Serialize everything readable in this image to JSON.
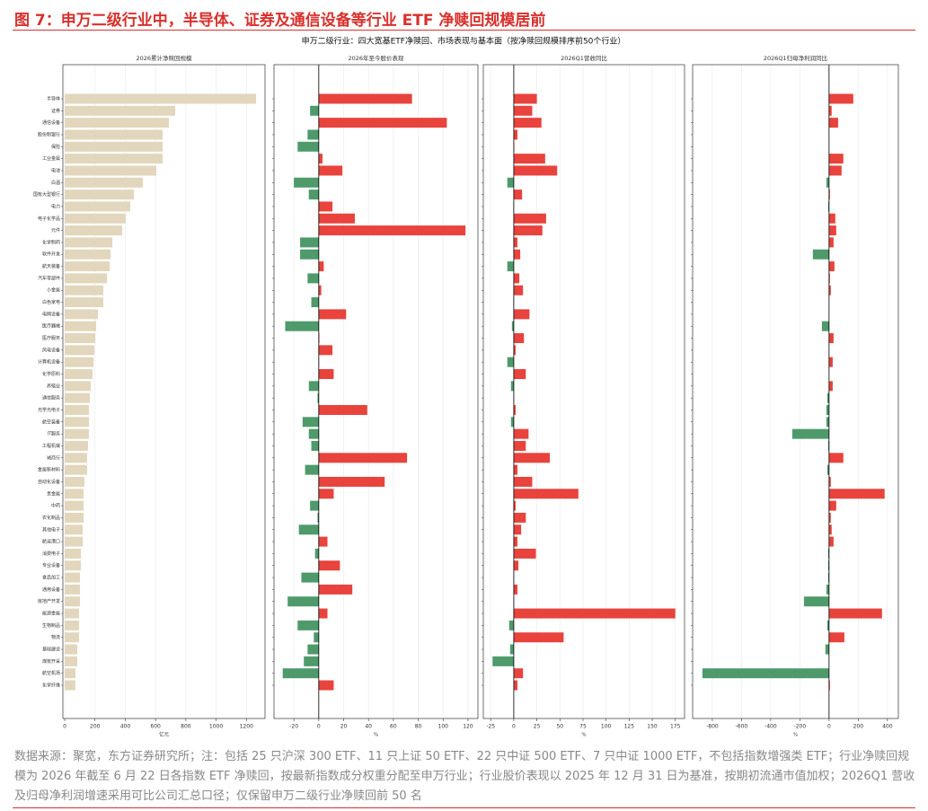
{
  "title": "图 7：申万二级行业中，半导体、证券及通信设备等行业 ETF 净赎回规模居前",
  "subtitle": "申万二级行业：四大宽基ETF净赎回、市场表现与基本面（按净赎回规模排序前50个行业）",
  "source": "数据来源：聚宽，东方证券研究所；注：包括 25 只沪深 300 ETF、11 只上证 50 ETF、22 只中证 500 ETF、7 只中证 1000 ETF，不包括指数增强类 ETF；行业净赎回规模为 2026 年截至 6 月 22 日各指数 ETF 净赎回，按最新指数成分权重分配至申万行业；行业股价表现以 2025 年 12 月 31 日为基准，按期初流通市值加权；2026Q1 营收及归母净利润增速采用可比公司汇总口径；仅保留申万二级行业净赎回前 50 名",
  "chart_data": [
    {
      "type": "barh",
      "title": "2026累计净赎回规模",
      "xlabel": "亿元",
      "color": "#e2d6bc",
      "categories": [
        "半导体",
        "证券",
        "通信设备",
        "股份制银行",
        "保险",
        "工业金属",
        "电池",
        "白酒",
        "国有大型银行",
        "电力",
        "电子化学品",
        "元件",
        "化学制药",
        "软件开发",
        "航天装备",
        "汽车零部件",
        "小金属",
        "白色家电",
        "电网设备",
        "医疗器械",
        "医疗服务",
        "风电设备",
        "计算机设备",
        "化学原料",
        "养殖业",
        "通信服务",
        "光学光电子",
        "航空装备",
        "IT服务",
        "工程机械",
        "城商行",
        "金属新材料",
        "自动化设备",
        "贵金属",
        "中药",
        "农化制品",
        "其他电子",
        "航运港口",
        "消费电子",
        "专业设备",
        "食品加工",
        "通用设备",
        "房地产开发",
        "能源金属",
        "生物制品",
        "物流",
        "基础建设",
        "煤炭开采",
        "航空机场",
        "化学纤维"
      ],
      "values": [
        1264,
        730,
        688,
        647,
        647,
        647,
        605,
        516,
        457,
        433,
        403,
        380,
        315,
        303,
        297,
        279,
        255,
        255,
        220,
        208,
        202,
        196,
        190,
        184,
        172,
        166,
        160,
        160,
        160,
        154,
        148,
        148,
        130,
        125,
        125,
        125,
        119,
        119,
        107,
        107,
        101,
        101,
        101,
        95,
        95,
        95,
        83,
        83,
        71,
        71
      ],
      "xlim": [
        -12,
        1323
      ],
      "xticks": [
        0,
        200,
        400,
        600,
        800,
        1000,
        1200
      ]
    },
    {
      "type": "barh",
      "title": "2026年至今股价表现",
      "xlabel": "%",
      "positive_color": "#e8433c",
      "negative_color": "#4e9a6b",
      "values": [
        75,
        -7,
        103,
        -9,
        -17,
        3,
        19,
        -20,
        -8,
        11,
        29,
        118,
        -15,
        -15,
        4,
        -9,
        2,
        -6,
        22,
        -27,
        0.5,
        11,
        0.3,
        12,
        -8,
        -1,
        39,
        -13,
        -8,
        -6,
        71,
        -11,
        53,
        12,
        -7,
        -1,
        -16,
        7,
        -3,
        17,
        -14,
        27,
        -25,
        7,
        -17,
        -4,
        -9,
        -12,
        -29,
        12
      ],
      "xlim": [
        -36,
        128
      ],
      "xticks": [
        -20,
        0,
        20,
        40,
        60,
        80,
        100,
        120
      ]
    },
    {
      "type": "barh",
      "title": "2026Q1营收同比",
      "xlabel": "%",
      "positive_color": "#e8433c",
      "negative_color": "#4e9a6b",
      "values": [
        25,
        20,
        30,
        4,
        0.5,
        34,
        47,
        -7,
        9,
        -0.5,
        35,
        31,
        4,
        7,
        -7,
        6,
        10,
        -0.5,
        17,
        -2,
        11,
        2,
        -7,
        13,
        -3,
        0.3,
        2,
        -3,
        16,
        13,
        39,
        4,
        20,
        70,
        2,
        13,
        8,
        4,
        24,
        5,
        0.3,
        4,
        0.3,
        175,
        -5,
        54,
        -4,
        -23,
        10,
        4
      ],
      "xlim": [
        -33,
        185
      ],
      "xticks": [
        -25,
        0,
        25,
        50,
        75,
        100,
        125,
        150,
        175
      ]
    },
    {
      "type": "barh",
      "title": "2026Q1归母净利润同比",
      "xlabel": "%",
      "positive_color": "#e8433c",
      "negative_color": "#4e9a6b",
      "values": [
        166,
        18,
        62,
        1,
        1,
        98,
        86,
        -18,
        6,
        -6,
        43,
        49,
        31,
        -111,
        37,
        6,
        12,
        1,
        1,
        -49,
        31,
        0.5,
        25,
        1,
        25,
        -12,
        -18,
        -18,
        -252,
        -6,
        98,
        -12,
        12,
        381,
        49,
        12,
        18,
        31,
        -6,
        -6,
        -6,
        -18,
        -172,
        363,
        -12,
        105,
        -25,
        1,
        -868,
        6
      ],
      "xlim": [
        -935,
        475
      ],
      "xticks": [
        -800,
        -600,
        -400,
        -200,
        0,
        200,
        400
      ]
    }
  ]
}
